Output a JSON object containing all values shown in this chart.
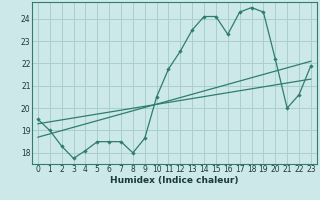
{
  "xlabel": "Humidex (Indice chaleur)",
  "bg_color": "#cce8e8",
  "grid_color": "#aacfcf",
  "line_color": "#2e7d6e",
  "spine_color": "#2e7d6e",
  "xlim": [
    -0.5,
    23.5
  ],
  "ylim": [
    17.5,
    24.75
  ],
  "xticks": [
    0,
    1,
    2,
    3,
    4,
    5,
    6,
    7,
    8,
    9,
    10,
    11,
    12,
    13,
    14,
    15,
    16,
    17,
    18,
    19,
    20,
    21,
    22,
    23
  ],
  "yticks": [
    18,
    19,
    20,
    21,
    22,
    23,
    24
  ],
  "series1_x": [
    0,
    1,
    2,
    3,
    4,
    5,
    6,
    7,
    8,
    9,
    10,
    11,
    12,
    13,
    14,
    15,
    16,
    17,
    18,
    19,
    20,
    21,
    22,
    23
  ],
  "series1_y": [
    19.5,
    19.0,
    18.3,
    17.75,
    18.1,
    18.5,
    18.5,
    18.5,
    18.0,
    18.65,
    20.5,
    21.75,
    22.55,
    23.5,
    24.1,
    24.1,
    23.3,
    24.3,
    24.5,
    24.3,
    22.2,
    20.0,
    20.6,
    21.9
  ],
  "trend1_x": [
    0,
    23
  ],
  "trend1_y": [
    19.3,
    21.3
  ],
  "trend2_x": [
    0,
    23
  ],
  "trend2_y": [
    18.7,
    22.1
  ]
}
